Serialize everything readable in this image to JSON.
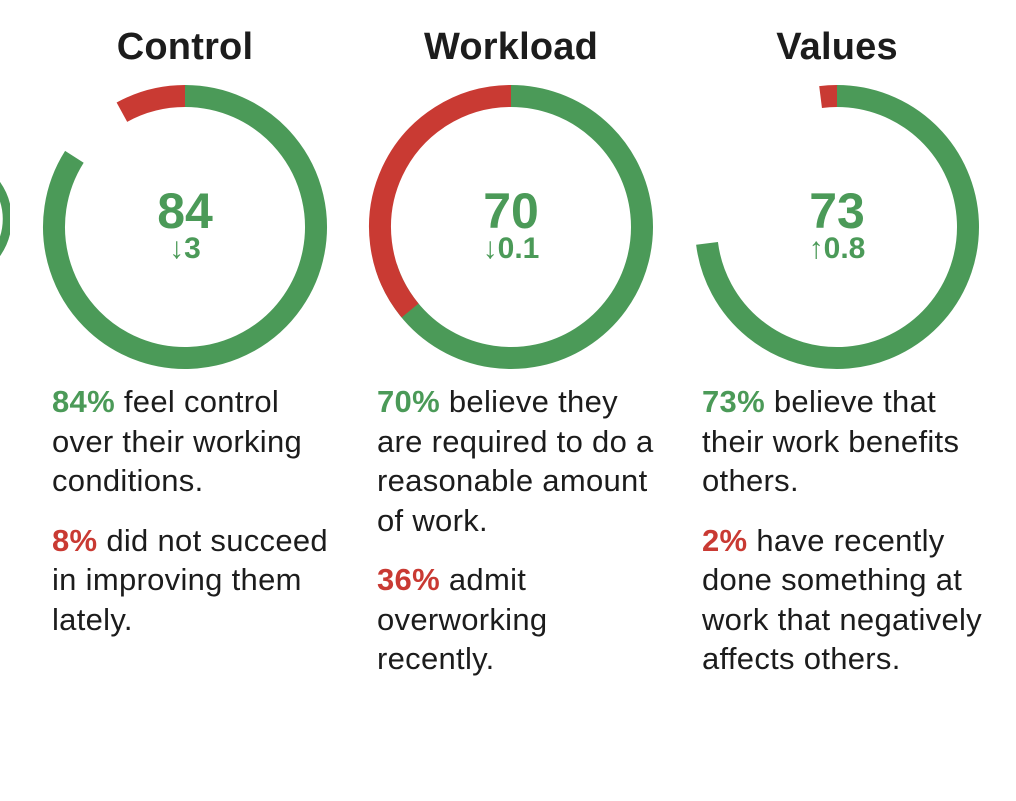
{
  "colors": {
    "positive": "#4b9a58",
    "negative": "#c93a33"
  },
  "chart_data": [
    {
      "type": "donut",
      "title": "Control",
      "score": "84",
      "delta": "3",
      "delta_direction": "down",
      "segments": [
        {
          "status": "positive",
          "start_pct": 0,
          "end_pct": 84
        },
        {
          "status": "negative",
          "start_pct": 92,
          "end_pct": 100
        }
      ],
      "statements": [
        {
          "value": "84%",
          "status": "positive",
          "text": " feel control over their working conditions."
        },
        {
          "value": "8%",
          "status": "negative",
          "text": " did not succeed in improving them lately."
        }
      ]
    },
    {
      "type": "donut",
      "title": "Workload",
      "score": "70",
      "delta": "0.1",
      "delta_direction": "down",
      "segments": [
        {
          "status": "positive",
          "start_pct": 0,
          "end_pct": 70
        },
        {
          "status": "negative",
          "start_pct": 64,
          "end_pct": 100
        }
      ],
      "statements": [
        {
          "value": "70%",
          "status": "positive",
          "text": " believe they are required to do a reasonable amount of work."
        },
        {
          "value": "36%",
          "status": "negative",
          "text": " admit overworking recently."
        }
      ]
    },
    {
      "type": "donut",
      "title": "Values",
      "score": "73",
      "delta": "0.8",
      "delta_direction": "up",
      "segments": [
        {
          "status": "positive",
          "start_pct": 0,
          "end_pct": 73
        },
        {
          "status": "negative",
          "start_pct": 98,
          "end_pct": 100
        }
      ],
      "statements": [
        {
          "value": "73%",
          "status": "positive",
          "text": " believe that their work benefits others."
        },
        {
          "value": "2%",
          "status": "negative",
          "text": " have recently done something at work that negatively affects others."
        }
      ]
    }
  ]
}
